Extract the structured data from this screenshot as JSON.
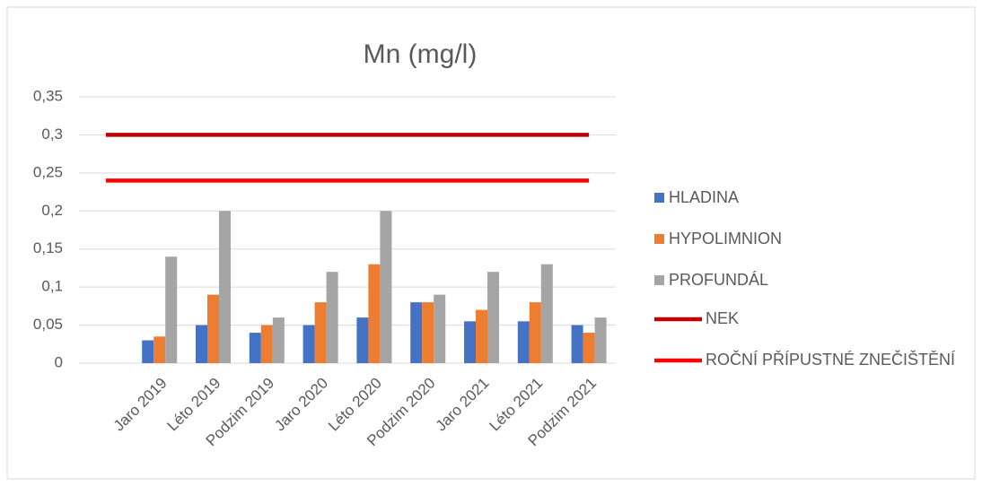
{
  "chart_data": {
    "type": "bar",
    "title": "Mn (mg/l)",
    "categories": [
      null,
      "Jaro 2019",
      "Léto 2019",
      "Podzim 2019",
      "Jaro 2020",
      "Léto 2020",
      "Podzim 2020",
      "Jaro 2021",
      "Léto 2021",
      "Podzim 2021"
    ],
    "series": [
      {
        "name": "HLADINA",
        "color": "#4472c4",
        "type": "bar",
        "values": [
          null,
          0.03,
          0.05,
          0.04,
          0.05,
          0.06,
          0.08,
          0.055,
          0.055,
          0.05
        ]
      },
      {
        "name": "HYPOLIMNION",
        "color": "#ed7d31",
        "type": "bar",
        "values": [
          null,
          0.035,
          0.09,
          0.05,
          0.08,
          0.13,
          0.08,
          0.07,
          0.08,
          0.04
        ]
      },
      {
        "name": "PROFUNDÁL",
        "color": "#a5a5a5",
        "type": "bar",
        "values": [
          null,
          0.14,
          0.2,
          0.06,
          0.12,
          0.2,
          0.09,
          0.12,
          0.13,
          0.06
        ]
      },
      {
        "name": "NEK",
        "color": "#c00000",
        "type": "line",
        "values": [
          0.3,
          0.3,
          0.3,
          0.3,
          0.3,
          0.3,
          0.3,
          0.3,
          0.3,
          0.3
        ]
      },
      {
        "name": "ROČNÍ PŘÍPUSTNÉ ZNEČIŠTĚNÍ",
        "color": "#ff0000",
        "type": "line",
        "values": [
          0.24,
          0.24,
          0.24,
          0.24,
          0.24,
          0.24,
          0.24,
          0.24,
          0.24,
          0.24
        ]
      }
    ],
    "ylim": [
      0,
      0.35
    ],
    "yticks": [
      0,
      {
        "value": 0.05,
        "label": "0,05"
      },
      {
        "value": 0.1,
        "label": "0,1"
      },
      {
        "value": 0.15,
        "label": "0,15"
      },
      {
        "value": 0.2,
        "label": "0,2"
      },
      {
        "value": 0.25,
        "label": "0,25"
      },
      {
        "value": 0.3,
        "label": "0,3"
      },
      {
        "value": 0.35,
        "label": "0,35"
      }
    ],
    "grid": true,
    "legend": "right"
  }
}
